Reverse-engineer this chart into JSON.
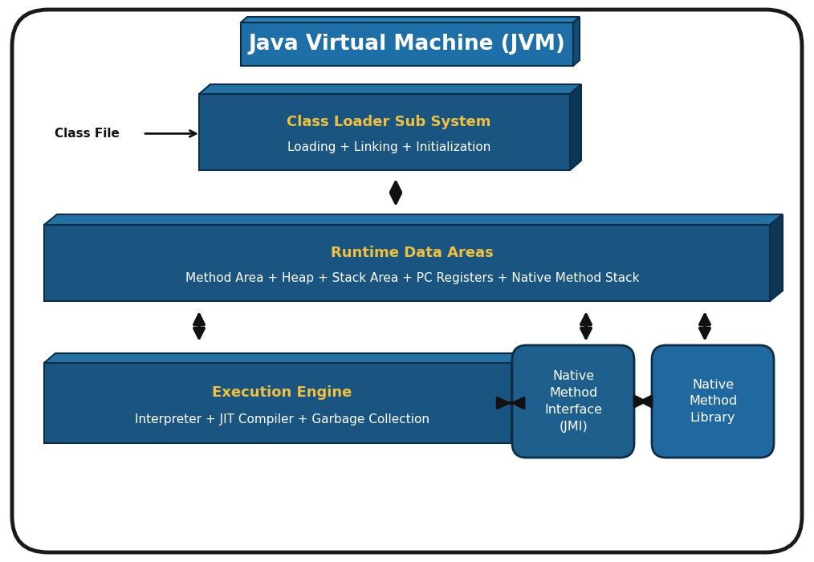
{
  "title": "Java Virtual Machine (JVM)",
  "title_color": "#FFFFFF",
  "outer_bg": "#FFFFFF",
  "outer_border": "#1a1a1a",
  "face_color_main": "#1e5f8e",
  "face_color_dark": "#1a4f7a",
  "side_color": "#123a5a",
  "top_color": "#2a7ab5",
  "face_color_nmi": "#1e5f8e",
  "face_color_nml": "#2068a0",
  "yellow_text": "#f0c040",
  "white_text": "#FFFFFF",
  "black_text": "#111111",
  "class_loader_title": "Class Loader Sub System",
  "class_loader_sub": "Loading + Linking + Initialization",
  "runtime_title": "Runtime Data Areas",
  "runtime_sub": "Method Area + Heap + Stack Area + PC Registers + Native Method Stack",
  "execution_title": "Execution Engine",
  "execution_sub": "Interpreter + JIT Compiler + Garbage Collection",
  "nmi_text": "Native\nMethod\nInterface\n(JMI)",
  "nml_text": "Native\nMethod\nLibrary",
  "class_file_label": "Class File"
}
